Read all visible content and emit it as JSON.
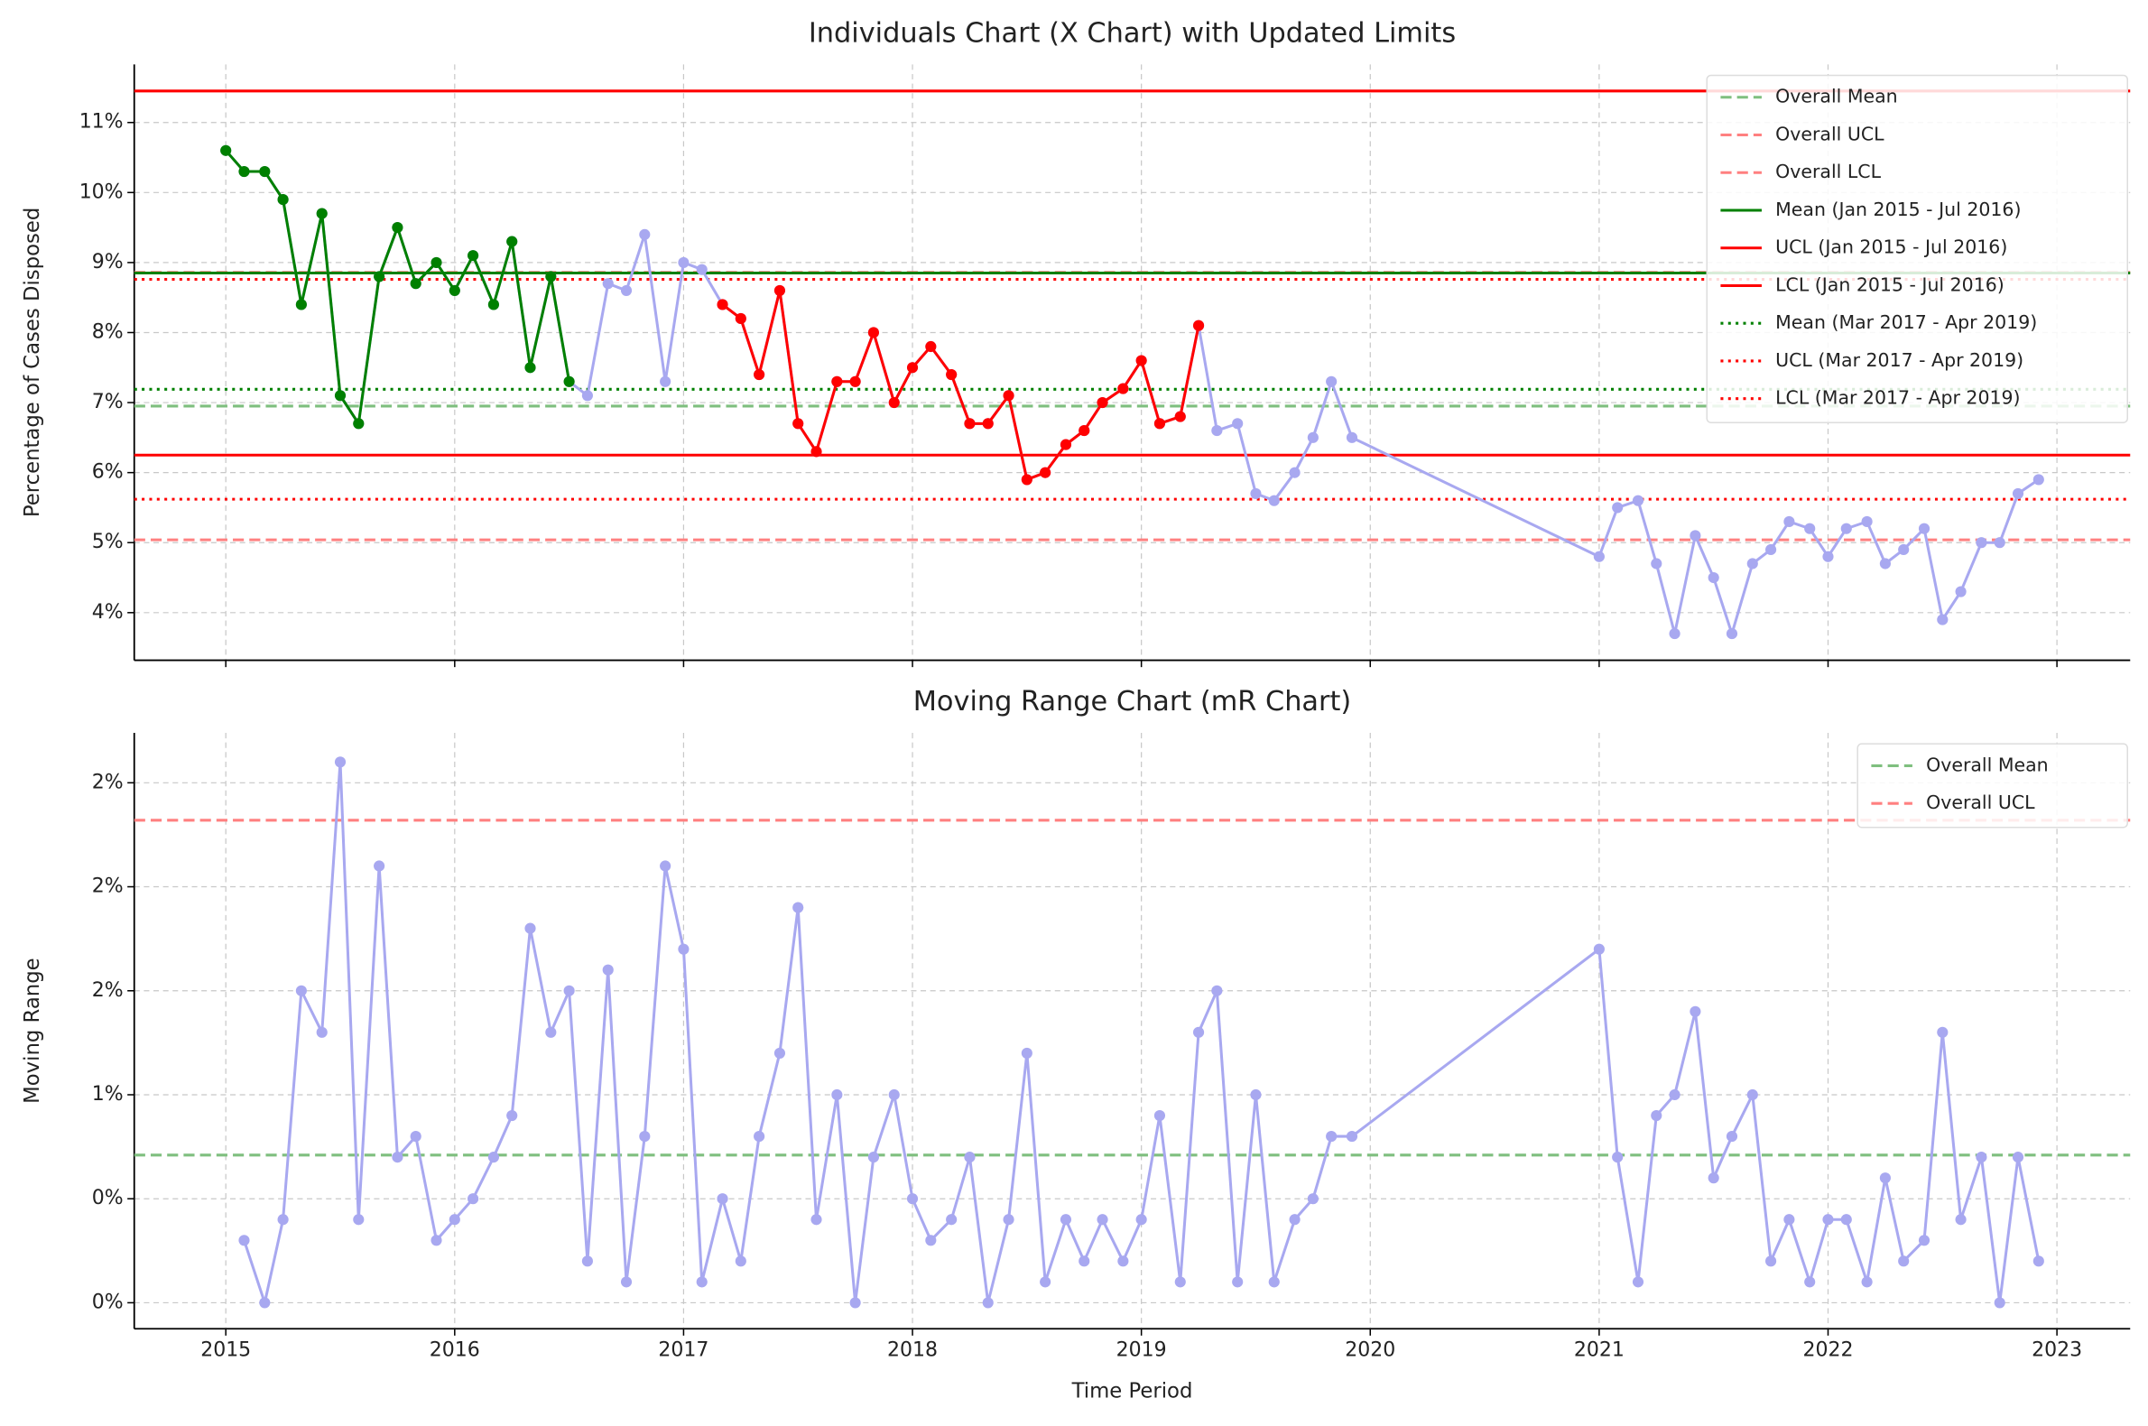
{
  "chart_data": [
    {
      "type": "line",
      "title": "Individuals Chart (X Chart) with Updated Limits",
      "y_label": "Percentage of Cases Disposed",
      "x": [
        2015,
        2015.08,
        2015.17,
        2015.25,
        2015.33,
        2015.42,
        2015.5,
        2015.58,
        2015.67,
        2015.75,
        2015.83,
        2015.92,
        2016,
        2016.08,
        2016.17,
        2016.25,
        2016.33,
        2016.42,
        2016.5,
        2016.58,
        2016.67,
        2016.75,
        2016.83,
        2016.92,
        2017,
        2017.08,
        2017.17,
        2017.25,
        2017.33,
        2017.42,
        2017.5,
        2017.58,
        2017.67,
        2017.75,
        2017.83,
        2017.92,
        2018,
        2018.08,
        2018.17,
        2018.25,
        2018.33,
        2018.42,
        2018.5,
        2018.58,
        2018.67,
        2018.75,
        2018.83,
        2018.92,
        2019,
        2019.08,
        2019.17,
        2019.25,
        2019.33,
        2019.42,
        2019.5,
        2019.58,
        2019.67,
        2019.75,
        2019.83,
        2019.92,
        2021,
        2021.08,
        2021.17,
        2021.25,
        2021.33,
        2021.42,
        2021.5,
        2021.58,
        2021.67,
        2021.75,
        2021.83,
        2021.92,
        2022,
        2022.08,
        2022.17,
        2022.25,
        2022.33,
        2022.42,
        2022.5,
        2022.58,
        2022.67,
        2022.75,
        2022.83,
        2022.92
      ],
      "series": [
        {
          "color": "#a8a8f0",
          "values": [
            10.6,
            10.3,
            10.3,
            9.9,
            8.4,
            9.7,
            7.1,
            6.7,
            8.8,
            9.5,
            8.7,
            9.0,
            8.6,
            9.1,
            8.4,
            9.3,
            7.5,
            8.8,
            7.3,
            7.1,
            8.7,
            8.6,
            9.4,
            7.3,
            9.0,
            8.9,
            8.4,
            8.2,
            7.4,
            8.6,
            6.7,
            6.3,
            7.3,
            7.3,
            8.0,
            7.0,
            7.5,
            7.8,
            7.4,
            6.7,
            6.7,
            7.1,
            5.9,
            6.0,
            6.4,
            6.6,
            7.0,
            7.2,
            7.6,
            6.7,
            6.8,
            8.1,
            6.6,
            6.7,
            5.7,
            5.6,
            6.0,
            6.5,
            7.3,
            6.5,
            4.8,
            5.5,
            5.6,
            4.7,
            3.7,
            5.1,
            4.5,
            3.7,
            4.7,
            4.9,
            5.3,
            5.2,
            4.8,
            5.2,
            5.3,
            4.7,
            4.9,
            5.2,
            3.9,
            4.3,
            5.0,
            5.0,
            5.7,
            5.9
          ]
        },
        {
          "color": "#008000",
          "x": [
            2015,
            2015.08,
            2015.17,
            2015.25,
            2015.33,
            2015.42,
            2015.5,
            2015.58,
            2015.67,
            2015.75,
            2015.83,
            2015.92,
            2016,
            2016.08,
            2016.17,
            2016.25,
            2016.33,
            2016.42,
            2016.5
          ],
          "values": [
            10.6,
            10.3,
            10.3,
            9.9,
            8.4,
            9.7,
            7.1,
            6.7,
            8.8,
            9.5,
            8.7,
            9.0,
            8.6,
            9.1,
            8.4,
            9.3,
            7.5,
            8.8,
            7.3
          ]
        },
        {
          "color": "#ff0000",
          "x": [
            2017.17,
            2017.25,
            2017.33,
            2017.42,
            2017.5,
            2017.58,
            2017.67,
            2017.75,
            2017.83,
            2017.92,
            2018,
            2018.08,
            2018.17,
            2018.25,
            2018.33,
            2018.42,
            2018.5,
            2018.58,
            2018.67,
            2018.75,
            2018.83,
            2018.92,
            2019,
            2019.08,
            2019.17,
            2019.25
          ],
          "values": [
            8.4,
            8.2,
            7.4,
            8.6,
            6.7,
            6.3,
            7.3,
            7.3,
            8.0,
            7.0,
            7.5,
            7.8,
            7.4,
            6.7,
            6.7,
            7.1,
            5.9,
            6.0,
            6.4,
            6.6,
            7.0,
            7.2,
            7.6,
            6.7,
            6.8,
            8.1
          ]
        }
      ],
      "reference_lines": [
        {
          "name": "Overall Mean",
          "value": 6.95,
          "color": "#7fbf7f",
          "style": "dashed"
        },
        {
          "name": "Overall UCL",
          "value": 8.86,
          "color": "#ff8080",
          "style": "dashed"
        },
        {
          "name": "Overall LCL",
          "value": 5.04,
          "color": "#ff8080",
          "style": "dashed"
        },
        {
          "name": "Mean (Jan 2015 - Jul 2016)",
          "value": 8.85,
          "color": "#008000",
          "style": "solid"
        },
        {
          "name": "UCL (Jan 2015 - Jul 2016)",
          "value": 11.45,
          "color": "#ff0000",
          "style": "solid"
        },
        {
          "name": "LCL (Jan 2015 - Jul 2016)",
          "value": 6.25,
          "color": "#ff0000",
          "style": "solid"
        },
        {
          "name": "Mean (Mar 2017 - Apr 2019)",
          "value": 7.19,
          "color": "#008000",
          "style": "dotted"
        },
        {
          "name": "UCL (Mar 2017 - Apr 2019)",
          "value": 8.76,
          "color": "#ff0000",
          "style": "dotted"
        },
        {
          "name": "LCL (Mar 2017 - Apr 2019)",
          "value": 5.62,
          "color": "#ff0000",
          "style": "dotted"
        }
      ],
      "xlim": [
        2014.6,
        2023.32
      ],
      "xticks": [
        2015,
        2016,
        2017,
        2018,
        2019,
        2020,
        2021,
        2022,
        2023
      ],
      "ylim": [
        3.32,
        11.83
      ],
      "yticks": [
        {
          "value": 4,
          "label": "4%"
        },
        {
          "value": 5,
          "label": "5%"
        },
        {
          "value": 6,
          "label": "6%"
        },
        {
          "value": 7,
          "label": "7%"
        },
        {
          "value": 8,
          "label": "8%"
        },
        {
          "value": 9,
          "label": "9%"
        },
        {
          "value": 10,
          "label": "10%"
        },
        {
          "value": 11,
          "label": "11%"
        }
      ],
      "grid": true,
      "legend": "upper right"
    },
    {
      "type": "line",
      "title": "Moving Range Chart (mR Chart)",
      "y_label": "Moving Range",
      "x_label": "Time Period",
      "x": [
        2015.08,
        2015.17,
        2015.25,
        2015.33,
        2015.42,
        2015.5,
        2015.58,
        2015.67,
        2015.75,
        2015.83,
        2015.92,
        2016,
        2016.08,
        2016.17,
        2016.25,
        2016.33,
        2016.42,
        2016.5,
        2016.58,
        2016.67,
        2016.75,
        2016.83,
        2016.92,
        2017,
        2017.08,
        2017.17,
        2017.25,
        2017.33,
        2017.42,
        2017.5,
        2017.58,
        2017.67,
        2017.75,
        2017.83,
        2017.92,
        2018,
        2018.08,
        2018.17,
        2018.25,
        2018.33,
        2018.42,
        2018.5,
        2018.58,
        2018.67,
        2018.75,
        2018.83,
        2018.92,
        2019,
        2019.08,
        2019.17,
        2019.25,
        2019.33,
        2019.42,
        2019.5,
        2019.58,
        2019.67,
        2019.75,
        2019.83,
        2019.92,
        2021,
        2021.08,
        2021.17,
        2021.25,
        2021.33,
        2021.42,
        2021.5,
        2021.58,
        2021.67,
        2021.75,
        2021.83,
        2021.92,
        2022,
        2022.08,
        2022.17,
        2022.25,
        2022.33,
        2022.42,
        2022.5,
        2022.58,
        2022.67,
        2022.75,
        2022.83,
        2022.92
      ],
      "series": [
        {
          "color": "#a8a8f0",
          "values": [
            0.3,
            0.0,
            0.4,
            1.5,
            1.3,
            2.6,
            0.4,
            2.1,
            0.7,
            0.8,
            0.3,
            0.4,
            0.5,
            0.7,
            0.9,
            1.8,
            1.3,
            1.5,
            0.2,
            1.6,
            0.1,
            0.8,
            2.1,
            1.7,
            0.1,
            0.5,
            0.2,
            0.8,
            1.2,
            1.9,
            0.4,
            1.0,
            0.0,
            0.7,
            1.0,
            0.5,
            0.3,
            0.4,
            0.7,
            0.0,
            0.4,
            1.2,
            0.1,
            0.4,
            0.2,
            0.4,
            0.2,
            0.4,
            0.9,
            0.1,
            1.3,
            1.5,
            0.1,
            1.0,
            0.1,
            0.4,
            0.5,
            0.8,
            0.8,
            1.7,
            0.7,
            0.1,
            0.9,
            1.0,
            1.4,
            0.6,
            0.8,
            1.0,
            0.2,
            0.4,
            0.1,
            0.4,
            0.4,
            0.1,
            0.6,
            0.2,
            0.3,
            1.3,
            0.4,
            0.7,
            0.0,
            0.7,
            0.2
          ]
        }
      ],
      "reference_lines": [
        {
          "name": "Overall Mean",
          "value": 0.71,
          "color": "#7fbf7f",
          "style": "dashed"
        },
        {
          "name": "Overall UCL",
          "value": 2.32,
          "color": "#ff8080",
          "style": "dashed"
        }
      ],
      "xlim": [
        2014.6,
        2023.32
      ],
      "xticks": [
        2015,
        2016,
        2017,
        2018,
        2019,
        2020,
        2021,
        2022,
        2023
      ],
      "ylim": [
        -0.125,
        2.74
      ],
      "yticks": [
        {
          "value": 0,
          "label": "0%"
        },
        {
          "value": 0.5,
          "label": "0%"
        },
        {
          "value": 1,
          "label": "1%"
        },
        {
          "value": 1.5,
          "label": "2%"
        },
        {
          "value": 2,
          "label": "2%"
        },
        {
          "value": 2.5,
          "label": "2%"
        }
      ],
      "grid": true,
      "legend": "upper right"
    }
  ]
}
